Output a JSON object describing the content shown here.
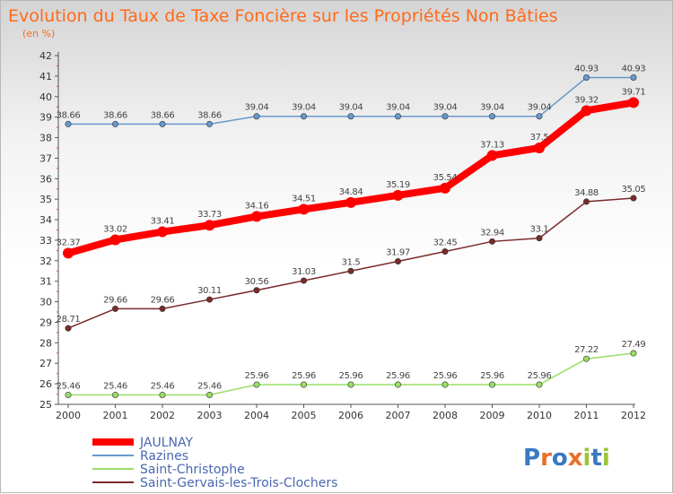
{
  "chart_data": {
    "type": "line",
    "title": "Evolution du Taux de Taxe Foncière sur les Propriétés Non Bâties",
    "subtitle": "(en %)",
    "x": [
      "2000",
      "2001",
      "2002",
      "2003",
      "2004",
      "2005",
      "2006",
      "2007",
      "2008",
      "2009",
      "2010",
      "2011",
      "2012"
    ],
    "ylim": [
      25,
      42
    ],
    "yticks": [
      "25",
      "26",
      "27",
      "28",
      "29",
      "30",
      "31",
      "32",
      "33",
      "34",
      "35",
      "36",
      "37",
      "38",
      "39",
      "40",
      "41",
      "42"
    ],
    "grid": false,
    "legend_position": "bottom-left",
    "series": [
      {
        "name": "JAULNAY",
        "color": "#ff0000",
        "values": [
          32.37,
          33.02,
          33.41,
          33.73,
          34.16,
          34.51,
          34.84,
          35.19,
          35.54,
          37.13,
          37.5,
          39.32,
          39.71
        ],
        "labels": [
          "32.37",
          "33.02",
          "33.41",
          "33.73",
          "34.16",
          "34.51",
          "34.84",
          "35.19",
          "35.54",
          "37.13",
          "37.5",
          "39.32",
          "39.71"
        ]
      },
      {
        "name": "Razines",
        "color": "#6699cc",
        "values": [
          38.66,
          38.66,
          38.66,
          38.66,
          39.04,
          39.04,
          39.04,
          39.04,
          39.04,
          39.04,
          39.04,
          40.93,
          40.93
        ],
        "labels": [
          "38.66",
          "38.66",
          "38.66",
          "38.66",
          "39.04",
          "39.04",
          "39.04",
          "39.04",
          "39.04",
          "39.04",
          "39.04",
          "40.93",
          "40.93"
        ]
      },
      {
        "name": "Saint-Christophe",
        "color": "#99dd66",
        "values": [
          25.46,
          25.46,
          25.46,
          25.46,
          25.96,
          25.96,
          25.96,
          25.96,
          25.96,
          25.96,
          25.96,
          27.22,
          27.49
        ],
        "labels": [
          "25.46",
          "25.46",
          "25.46",
          "25.46",
          "25.96",
          "25.96",
          "25.96",
          "25.96",
          "25.96",
          "25.96",
          "25.96",
          "27.22",
          "27.49"
        ]
      },
      {
        "name": "Saint-Gervais-les-Trois-Clochers",
        "color": "#7a2a2a",
        "values": [
          28.71,
          29.66,
          29.66,
          30.11,
          30.56,
          31.03,
          31.5,
          31.97,
          32.45,
          32.94,
          33.1,
          34.88,
          35.05
        ],
        "labels": [
          "28.71",
          "29.66",
          "29.66",
          "30.11",
          "30.56",
          "31.03",
          "31.5",
          "31.97",
          "32.45",
          "32.94",
          "33.1",
          "34.88",
          "35.05"
        ]
      }
    ]
  },
  "logo": {
    "text": "Proxiti",
    "letter_colors": [
      "#3a78c2",
      "#e8702a",
      "#3a78c2",
      "#e8702a",
      "#9dc23a",
      "#3a78c2",
      "#9dc23a"
    ]
  }
}
